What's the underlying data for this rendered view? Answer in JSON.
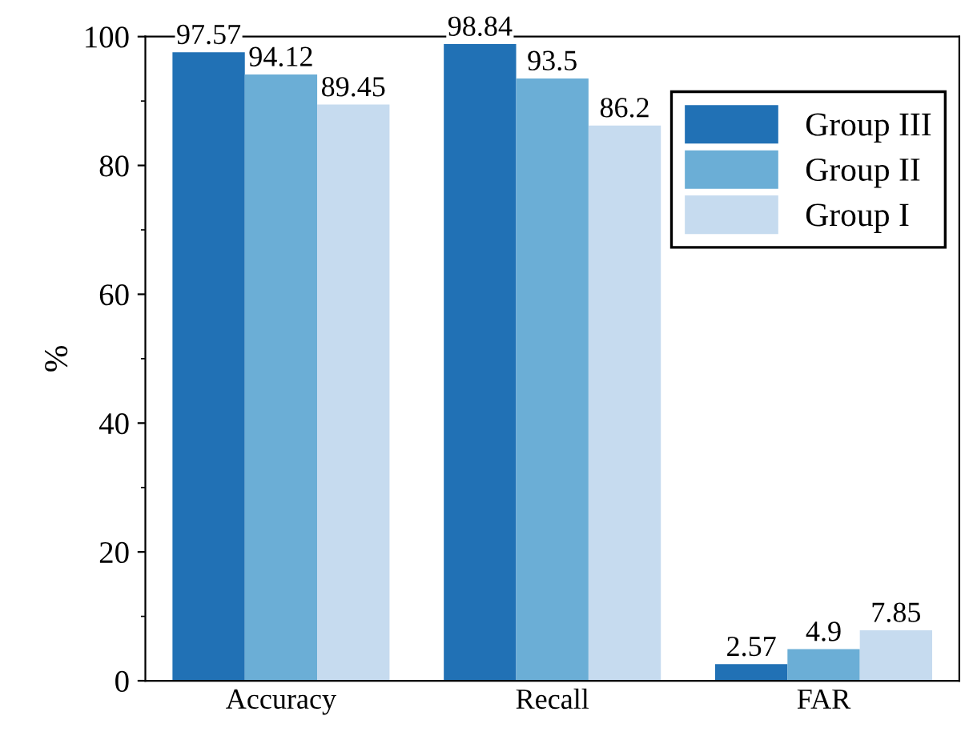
{
  "chart_data": {
    "type": "bar",
    "ylabel": "%",
    "categories": [
      "Accuracy",
      "Recall",
      "FAR"
    ],
    "series": [
      {
        "name": "Group III",
        "color": "#2171b5",
        "values": [
          97.57,
          98.84,
          2.57
        ]
      },
      {
        "name": "Group II",
        "color": "#6baed6",
        "values": [
          94.12,
          93.5,
          4.9
        ]
      },
      {
        "name": "Group I",
        "color": "#c6dbef",
        "values": [
          89.45,
          86.2,
          7.85
        ]
      }
    ],
    "ylim": [
      0,
      100
    ],
    "yticks": [
      0,
      20,
      40,
      60,
      80,
      100
    ],
    "data_labels": true,
    "legend": "top right",
    "grid": false
  }
}
